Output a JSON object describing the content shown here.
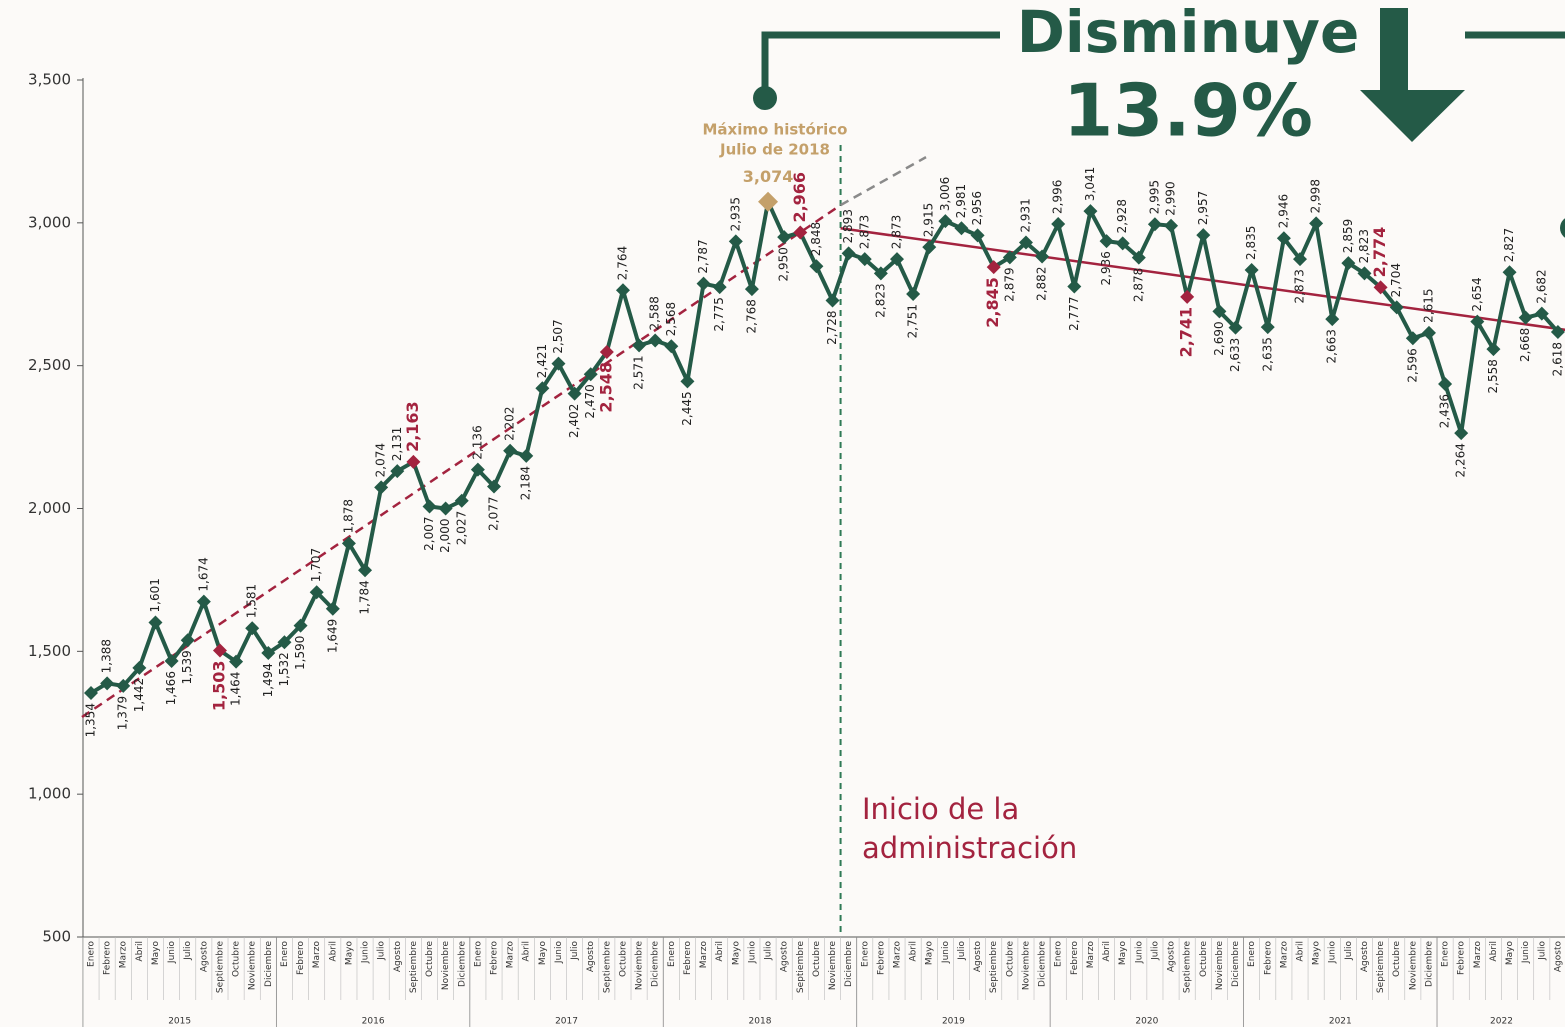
{
  "chart_data": {
    "type": "line",
    "headline": "Disminuye",
    "headline_value": "13.9%",
    "max_note": [
      "Máximo histórico",
      "Julio de 2018"
    ],
    "admin_note": [
      "Inicio de la",
      "administración"
    ],
    "categories": [
      "Enero",
      "Febrero",
      "Marzo",
      "Abril",
      "Mayo",
      "Junio",
      "Julio",
      "Agosto",
      "Septiembre",
      "Octubre",
      "Noviembre",
      "Diciembre",
      "Enero",
      "Febrero",
      "Marzo",
      "Abril",
      "Mayo",
      "Junio",
      "Julio",
      "Agosto",
      "Septiembre",
      "Octubre",
      "Noviembre",
      "Diciembre",
      "Enero",
      "Febrero",
      "Marzo",
      "Abril",
      "Mayo",
      "Junio",
      "Julio",
      "Agosto",
      "Septiembre",
      "Octubre",
      "Noviembre",
      "Diciembre",
      "Enero",
      "Febrero",
      "Marzo",
      "Abril",
      "Mayo",
      "Junio",
      "Julio",
      "Agosto",
      "Septiembre",
      "Octubre",
      "Noviembre",
      "Diciembre",
      "Enero",
      "Febrero",
      "Marzo",
      "Abril",
      "Mayo",
      "Junio",
      "Julio",
      "Agosto",
      "Septiembre",
      "Octubre",
      "Noviembre",
      "Diciembre",
      "Enero",
      "Febrero",
      "Marzo",
      "Abril",
      "Mayo",
      "Junio",
      "Julio",
      "Agosto",
      "Septiembre",
      "Octubre",
      "Noviembre",
      "Diciembre",
      "Enero",
      "Febrero",
      "Marzo",
      "Abril",
      "Mayo",
      "Junio",
      "Julio",
      "Agosto",
      "Septiembre",
      "Octubre",
      "Noviembre",
      "Diciembre",
      "Enero",
      "Febrero",
      "Marzo",
      "Abril",
      "Mayo",
      "Junio",
      "Julio",
      "Agosto"
    ],
    "year_groups": [
      {
        "label": "2015",
        "count": 12
      },
      {
        "label": "2016",
        "count": 12
      },
      {
        "label": "2017",
        "count": 12
      },
      {
        "label": "2018",
        "count": 12
      },
      {
        "label": "2019",
        "count": 12
      },
      {
        "label": "2020",
        "count": 12
      },
      {
        "label": "2021",
        "count": 12
      },
      {
        "label": "2022",
        "count": 8
      }
    ],
    "color": "#245a47",
    "values": [
      1354,
      1388,
      1379,
      1442,
      1601,
      1466,
      1539,
      1674,
      1503,
      1464,
      1581,
      1494,
      1532,
      1590,
      1707,
      1649,
      1878,
      1784,
      2074,
      2131,
      2163,
      2007,
      2000,
      2027,
      2136,
      2077,
      2202,
      2184,
      2421,
      2507,
      2402,
      2470,
      2548,
      2764,
      2571,
      2588,
      2568,
      2445,
      2787,
      2775,
      2935,
      2768,
      3074,
      2950,
      2966,
      2848,
      2728,
      2893,
      2873,
      2823,
      2873,
      2751,
      2915,
      3006,
      2981,
      2956,
      2845,
      2879,
      2931,
      2882,
      2996,
      2777,
      3041,
      2936,
      2928,
      2878,
      2995,
      2990,
      2741,
      2957,
      2690,
      2633,
      2835,
      2635,
      2946,
      2873,
      2998,
      2663,
      2859,
      2823,
      2774,
      2704,
      2596,
      2615,
      2436,
      2264,
      2654,
      2558,
      2827,
      2668,
      2682,
      2618
    ],
    "value_labels": [
      "1,354",
      "1,388",
      "1,379",
      "1,442",
      "1,601",
      "1,466",
      "1,539",
      "1,674",
      "1,503",
      "1,464",
      "1,581",
      "1,494",
      "1,532",
      "1,590",
      "1,707",
      "1,649",
      "1,878",
      "1,784",
      "2,074",
      "2,131",
      "2,163",
      "2,007",
      "2,000",
      "2,027",
      "2,136",
      "2,077",
      "2,202",
      "2,184",
      "2,421",
      "2,507",
      "2,402",
      "2,470",
      "2,548",
      "2,764",
      "2,571",
      "2,588",
      "2,568",
      "2,445",
      "2,787",
      "2,775",
      "2,935",
      "2,768",
      "3,074",
      "2,950",
      "2,966",
      "2,848",
      "2,728",
      "2,893",
      "2,873",
      "2,823",
      "2,873",
      "2,751",
      "2,915",
      "3,006",
      "2,981",
      "2,956",
      "2,845",
      "2,879",
      "2,931",
      "2,882",
      "2,996",
      "2,777",
      "3,041",
      "2,936",
      "2,928",
      "2,878",
      "2,995",
      "2,990",
      "2,741",
      "2,957",
      "2,690",
      "2,633",
      "2,835",
      "2,635",
      "2,946",
      "2,873",
      "2,998",
      "2,663",
      "2,859",
      "2,823",
      "2,774",
      "2,704",
      "2,596",
      "2,615",
      "2,436",
      "2,264",
      "2,654",
      "2,558",
      "2,827",
      "2,668",
      "2,682",
      "2,618"
    ],
    "marker_colors": [
      "#245a47",
      "#245a47",
      "#245a47",
      "#245a47",
      "#245a47",
      "#245a47",
      "#245a47",
      "#245a47",
      "#a3233f",
      "#245a47",
      "#245a47",
      "#245a47",
      "#245a47",
      "#245a47",
      "#245a47",
      "#245a47",
      "#245a47",
      "#245a47",
      "#245a47",
      "#245a47",
      "#a3233f",
      "#245a47",
      "#245a47",
      "#245a47",
      "#245a47",
      "#245a47",
      "#245a47",
      "#245a47",
      "#245a47",
      "#245a47",
      "#245a47",
      "#245a47",
      "#a3233f",
      "#245a47",
      "#245a47",
      "#245a47",
      "#245a47",
      "#245a47",
      "#245a47",
      "#245a47",
      "#245a47",
      "#245a47",
      "#c4a06a",
      "#245a47",
      "#a3233f",
      "#245a47",
      "#245a47",
      "#245a47",
      "#245a47",
      "#245a47",
      "#245a47",
      "#245a47",
      "#245a47",
      "#245a47",
      "#245a47",
      "#245a47",
      "#a3233f",
      "#245a47",
      "#245a47",
      "#245a47",
      "#245a47",
      "#245a47",
      "#245a47",
      "#245a47",
      "#245a47",
      "#245a47",
      "#245a47",
      "#245a47",
      "#a3233f",
      "#245a47",
      "#245a47",
      "#245a47",
      "#245a47",
      "#245a47",
      "#245a47",
      "#245a47",
      "#245a47",
      "#245a47",
      "#245a47",
      "#245a47",
      "#a3233f",
      "#245a47",
      "#245a47",
      "#245a47",
      "#245a47",
      "#245a47",
      "#245a47",
      "#245a47",
      "#245a47",
      "#245a47",
      "#245a47",
      "#245a47"
    ],
    "trend_lines": [
      {
        "color": "#a3233f",
        "dashed": true,
        "x": [
          -0.56,
          46.5
        ],
        "values": [
          1270,
          3062
        ]
      },
      {
        "color": "#8a8a8a",
        "dashed": true,
        "x": [
          46.5,
          51.8
        ],
        "values": [
          3062,
          3230
        ]
      },
      {
        "color": "#a3233f",
        "dashed": false,
        "x": [
          46.5,
          91.5
        ],
        "values": [
          2981,
          2625
        ]
      }
    ],
    "ylim": [
      500,
      3500
    ],
    "yticks": [
      500,
      {
        "value": 1000,
        "label": "1,000"
      },
      {
        "value": 1500,
        "label": "1,500"
      },
      {
        "value": 2000,
        "label": "2,000"
      },
      {
        "value": 2500,
        "label": "2,500"
      },
      {
        "value": 3000,
        "label": "3,000"
      },
      {
        "value": 3500,
        "label": "3,500"
      }
    ]
  }
}
